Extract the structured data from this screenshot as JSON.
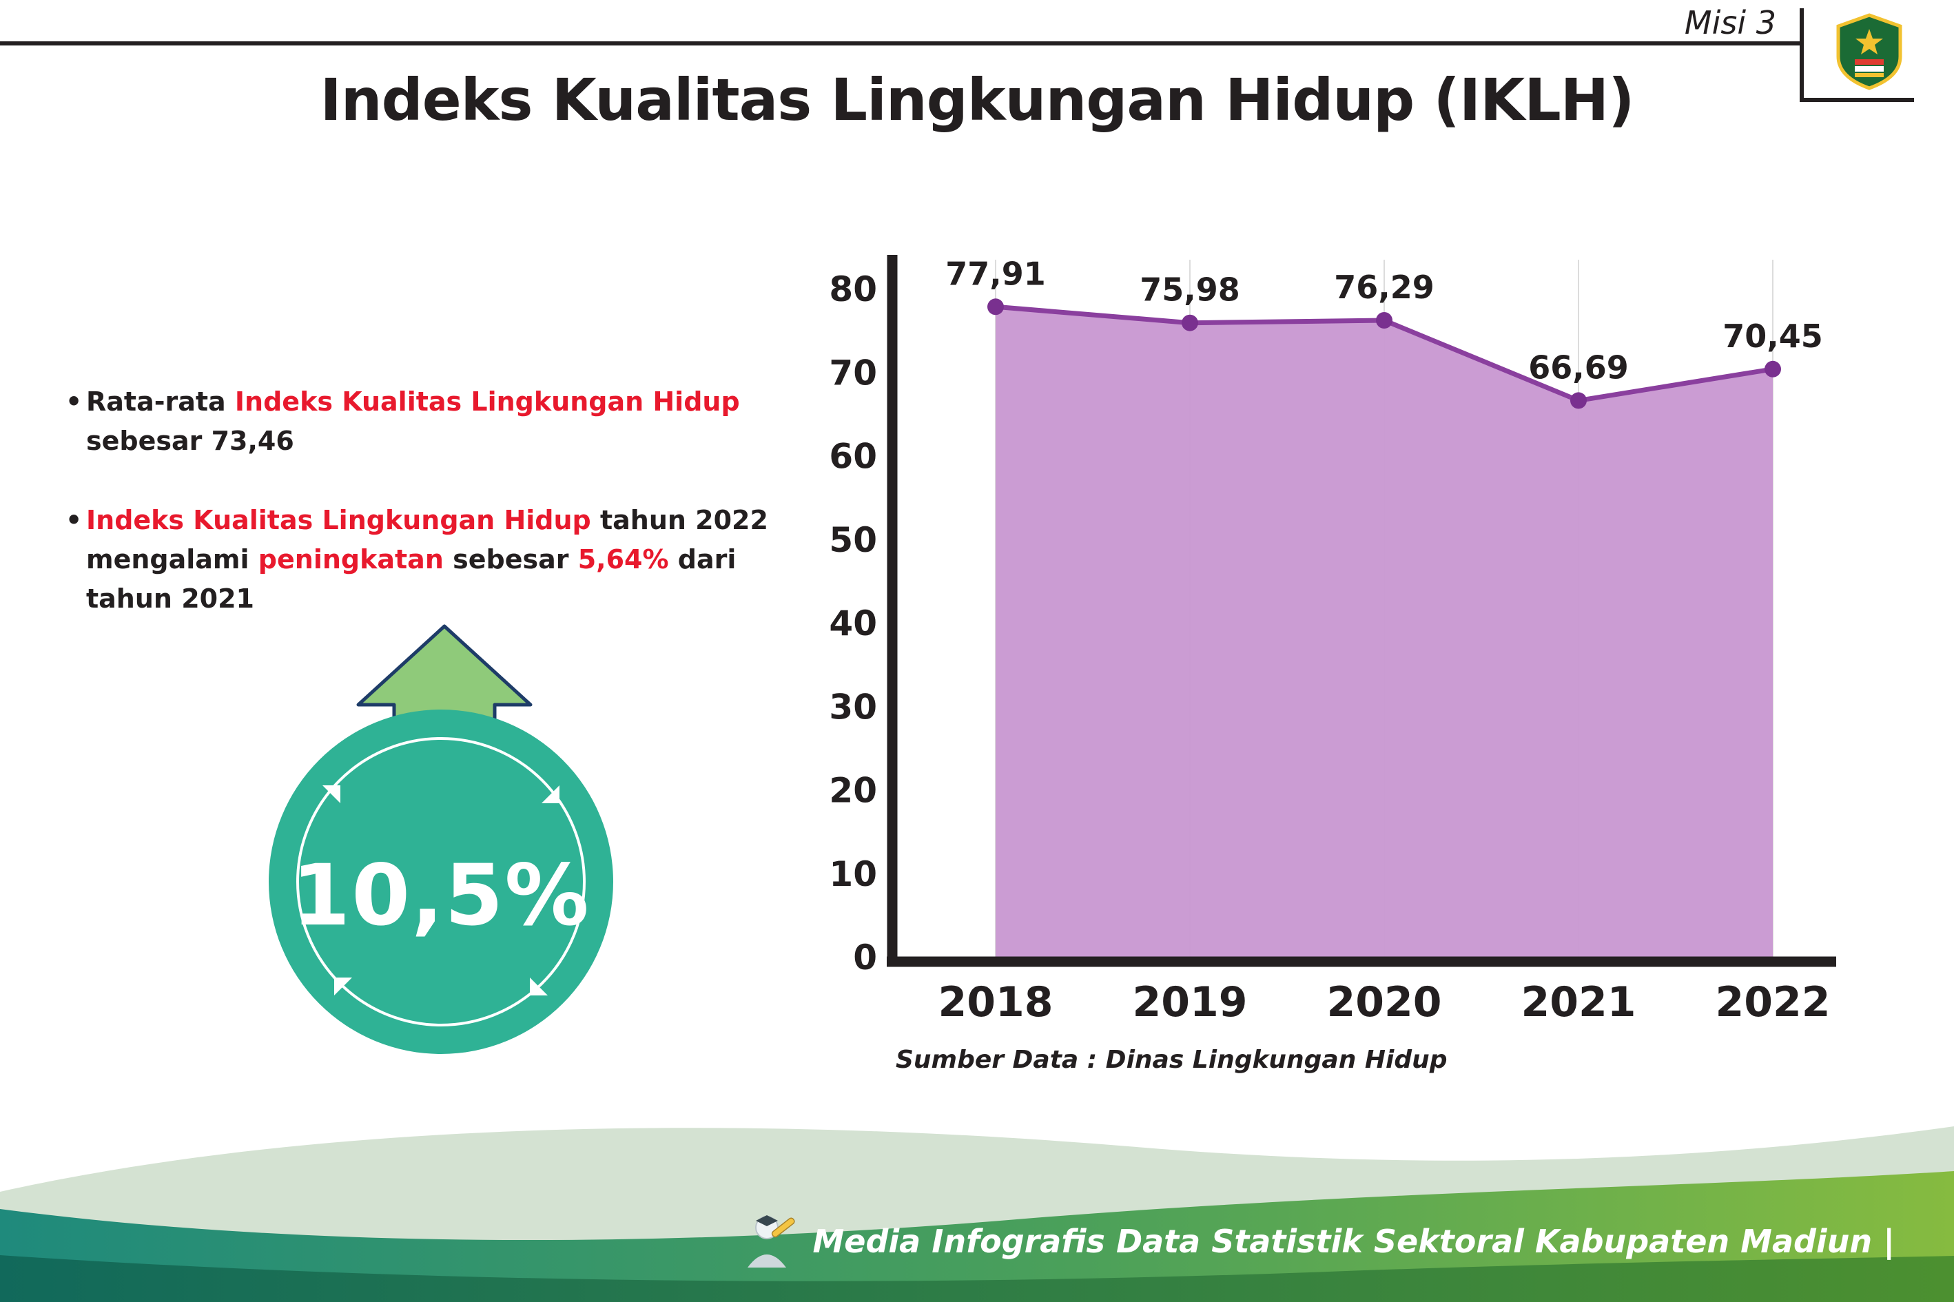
{
  "header": {
    "misi_label": "Misi 3",
    "title": "Indeks Kualitas Lingkungan Hidup (IKLH)"
  },
  "bullets": [
    {
      "segments": [
        {
          "text": "Rata-rata ",
          "color": "dark"
        },
        {
          "text": "Indeks Kualitas Lingkungan Hidup",
          "color": "red"
        },
        {
          "text": " sebesar 73,46",
          "color": "dark"
        }
      ]
    },
    {
      "segments": [
        {
          "text": "Indeks Kualitas Lingkungan Hidup",
          "color": "red"
        },
        {
          "text": " tahun 2022 mengalami ",
          "color": "dark"
        },
        {
          "text": "peningkatan",
          "color": "red"
        },
        {
          "text": " sebesar ",
          "color": "dark"
        },
        {
          "text": "5,64%",
          "color": "red"
        },
        {
          "text": " dari tahun 2021",
          "color": "dark"
        }
      ]
    }
  ],
  "badge": {
    "value": "10,5%"
  },
  "chart_data": {
    "type": "area",
    "title": "Indeks Kualitas Lingkungan Hidup (IKLH)",
    "categories": [
      "2018",
      "2019",
      "2020",
      "2021",
      "2022"
    ],
    "values": [
      77.91,
      75.98,
      76.29,
      66.69,
      70.45
    ],
    "value_labels": [
      "77,91",
      "75,98",
      "76,29",
      "66,69",
      "70,45"
    ],
    "xlabel": "",
    "ylabel": "",
    "ylim": [
      0,
      80
    ],
    "yticks": [
      0,
      10,
      20,
      30,
      40,
      50,
      60,
      70,
      80
    ],
    "grid": "vertical",
    "legend": "none",
    "source": "Sumber Data : Dinas Lingkungan Hidup",
    "colors": {
      "line": "#8a3f9e",
      "dot": "#79308f",
      "fill": "#c897d1",
      "axis": "#231f20",
      "gridline": "#dcdcdc",
      "label": "#231f20"
    }
  },
  "footer": {
    "text": "Media Infografis Data Statistik Sektoral Kabupaten Madiun |"
  }
}
